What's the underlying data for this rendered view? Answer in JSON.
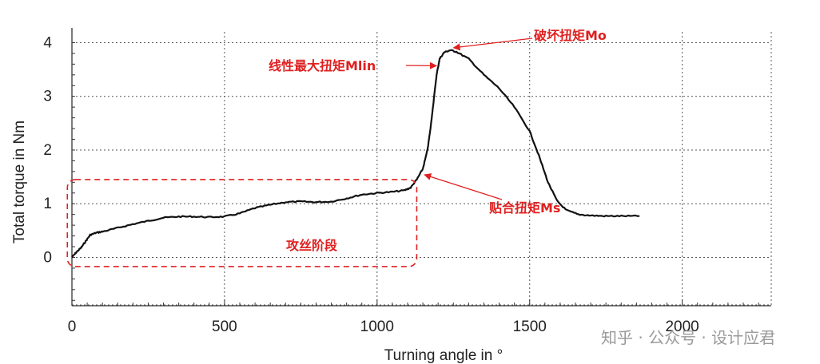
{
  "chart_data": {
    "type": "line",
    "xlabel": "Turning angle in °",
    "ylabel": "Total torque in Nm",
    "xlim": [
      0,
      2200
    ],
    "ylim": [
      -0.9,
      4.2
    ],
    "grid": true,
    "x_ticks": [
      "0",
      "500",
      "1000",
      "1500",
      "2000"
    ],
    "y_ticks": [
      "0",
      "1",
      "2",
      "3",
      "4"
    ],
    "series": [
      {
        "name": "",
        "color": "#111111",
        "points": [
          [
            0,
            0.0
          ],
          [
            15,
            0.1
          ],
          [
            30,
            0.18
          ],
          [
            45,
            0.3
          ],
          [
            60,
            0.42
          ],
          [
            80,
            0.46
          ],
          [
            100,
            0.48
          ],
          [
            150,
            0.55
          ],
          [
            200,
            0.62
          ],
          [
            250,
            0.68
          ],
          [
            300,
            0.74
          ],
          [
            350,
            0.76
          ],
          [
            400,
            0.76
          ],
          [
            450,
            0.75
          ],
          [
            500,
            0.76
          ],
          [
            550,
            0.82
          ],
          [
            600,
            0.92
          ],
          [
            650,
            0.98
          ],
          [
            700,
            1.03
          ],
          [
            750,
            1.04
          ],
          [
            800,
            1.03
          ],
          [
            850,
            1.04
          ],
          [
            900,
            1.1
          ],
          [
            950,
            1.17
          ],
          [
            1000,
            1.2
          ],
          [
            1050,
            1.22
          ],
          [
            1090,
            1.25
          ],
          [
            1110,
            1.3
          ],
          [
            1130,
            1.45
          ],
          [
            1150,
            1.65
          ],
          [
            1165,
            2.0
          ],
          [
            1175,
            2.4
          ],
          [
            1185,
            2.9
          ],
          [
            1195,
            3.4
          ],
          [
            1205,
            3.7
          ],
          [
            1220,
            3.82
          ],
          [
            1240,
            3.86
          ],
          [
            1260,
            3.83
          ],
          [
            1300,
            3.7
          ],
          [
            1350,
            3.4
          ],
          [
            1400,
            3.15
          ],
          [
            1450,
            2.8
          ],
          [
            1500,
            2.35
          ],
          [
            1530,
            1.9
          ],
          [
            1560,
            1.4
          ],
          [
            1590,
            1.05
          ],
          [
            1620,
            0.88
          ],
          [
            1660,
            0.8
          ],
          [
            1700,
            0.78
          ],
          [
            1750,
            0.77
          ],
          [
            1800,
            0.77
          ],
          [
            1860,
            0.77
          ]
        ]
      }
    ],
    "annotations": [
      {
        "label": "破坏扭矩Mo",
        "x": 1240,
        "y": 3.86
      },
      {
        "label": "线性最大扭矩Mlin",
        "x": 1200,
        "y": 3.6
      },
      {
        "label": "贴合扭矩Ms",
        "x": 1150,
        "y": 1.6
      },
      {
        "label": "攻丝阶段",
        "region": {
          "x0": -15,
          "x1": 1130,
          "y0": -0.17,
          "y1": 1.45
        }
      }
    ]
  },
  "watermark": "知乎 · 公众号 · 设计应君"
}
